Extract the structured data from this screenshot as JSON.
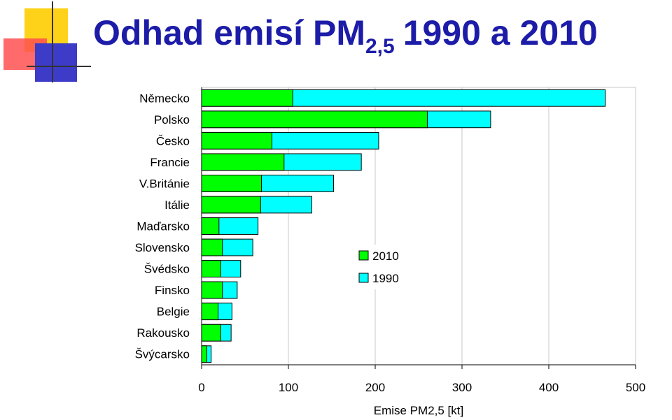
{
  "chart_data": {
    "type": "bar",
    "orientation": "horizontal",
    "overlap": true,
    "title": "Odhad emisí PM",
    "title_subscript": "2,5",
    "title_suffix": "1990 a 2010",
    "x_label": "Emise PM2,5 [kt]",
    "categories": [
      "Německo",
      "Polsko",
      "Česko",
      "Francie",
      "V.Británie",
      "Itálie",
      "Maďarsko",
      "Slovensko",
      "Švédsko",
      "Finsko",
      "Belgie",
      "Rakousko",
      "Švýcarsko"
    ],
    "series": [
      {
        "name": "2010",
        "color": "#00ff00",
        "values": [
          105,
          260,
          81,
          95,
          69,
          68,
          20,
          24,
          22,
          24,
          19,
          22,
          6
        ]
      },
      {
        "name": "1990",
        "color": "#00ffff",
        "values": [
          465,
          333,
          204,
          184,
          152,
          127,
          65,
          59,
          45,
          41,
          35,
          34,
          11
        ]
      }
    ],
    "xlim": [
      0,
      500
    ],
    "xticks": [
      0,
      100,
      200,
      300,
      400,
      500
    ],
    "grid": true,
    "legend": "center"
  }
}
